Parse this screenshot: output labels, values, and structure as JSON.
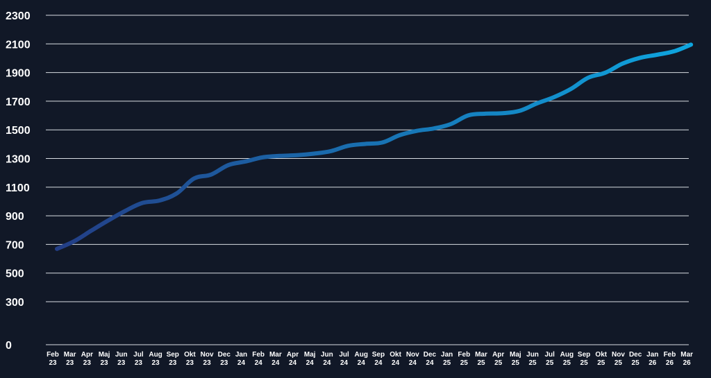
{
  "chart_data": {
    "type": "line",
    "title": "",
    "xlabel": "",
    "ylabel": "",
    "ylim": [
      0,
      2300
    ],
    "yticks": [
      0,
      300,
      500,
      700,
      900,
      1100,
      1300,
      1500,
      1700,
      1900,
      2100,
      2300
    ],
    "grid": true,
    "legend": "none",
    "colors": {
      "background": "#111827",
      "grid": "#d9dde3",
      "text": "#ffffff",
      "line_start": "#233e86",
      "line_end": "#0ea5df"
    },
    "categories": [
      [
        "Feb",
        "23"
      ],
      [
        "Mar",
        "23"
      ],
      [
        "Apr",
        "23"
      ],
      [
        "Maj",
        "23"
      ],
      [
        "Jun",
        "23"
      ],
      [
        "Jul",
        "23"
      ],
      [
        "Aug",
        "23"
      ],
      [
        "Sep",
        "23"
      ],
      [
        "Okt",
        "23"
      ],
      [
        "Nov",
        "23"
      ],
      [
        "Dec",
        "23"
      ],
      [
        "Jan",
        "24"
      ],
      [
        "Feb",
        "24"
      ],
      [
        "Mar",
        "24"
      ],
      [
        "Apr",
        "24"
      ],
      [
        "Maj",
        "24"
      ],
      [
        "Jun",
        "24"
      ],
      [
        "Jul",
        "24"
      ],
      [
        "Aug",
        "24"
      ],
      [
        "Sep",
        "24"
      ],
      [
        "Okt",
        "24"
      ],
      [
        "Nov",
        "24"
      ],
      [
        "Dec",
        "24"
      ],
      [
        "Jan",
        "25"
      ],
      [
        "Feb",
        "25"
      ],
      [
        "Mar",
        "25"
      ],
      [
        "Apr",
        "25"
      ],
      [
        "Maj",
        "25"
      ],
      [
        "Jun",
        "25"
      ],
      [
        "Jul",
        "25"
      ],
      [
        "Aug",
        "25"
      ],
      [
        "Sep",
        "25"
      ],
      [
        "Okt",
        "25"
      ],
      [
        "Nov",
        "25"
      ],
      [
        "Dec",
        "25"
      ],
      [
        "Jan",
        "26"
      ],
      [
        "Feb",
        "26"
      ],
      [
        "Mar",
        "26"
      ]
    ],
    "series": [
      {
        "values": [
          669,
          722,
          796,
          868,
          935,
          990,
          1007,
          1057,
          1160,
          1188,
          1254,
          1279,
          1308,
          1318,
          1323,
          1334,
          1352,
          1389,
          1402,
          1412,
          1463,
          1493,
          1510,
          1541,
          1601,
          1613,
          1616,
          1633,
          1684,
          1728,
          1786,
          1864,
          1899,
          1962,
          2002,
          2024,
          2048,
          2095
        ]
      }
    ]
  }
}
